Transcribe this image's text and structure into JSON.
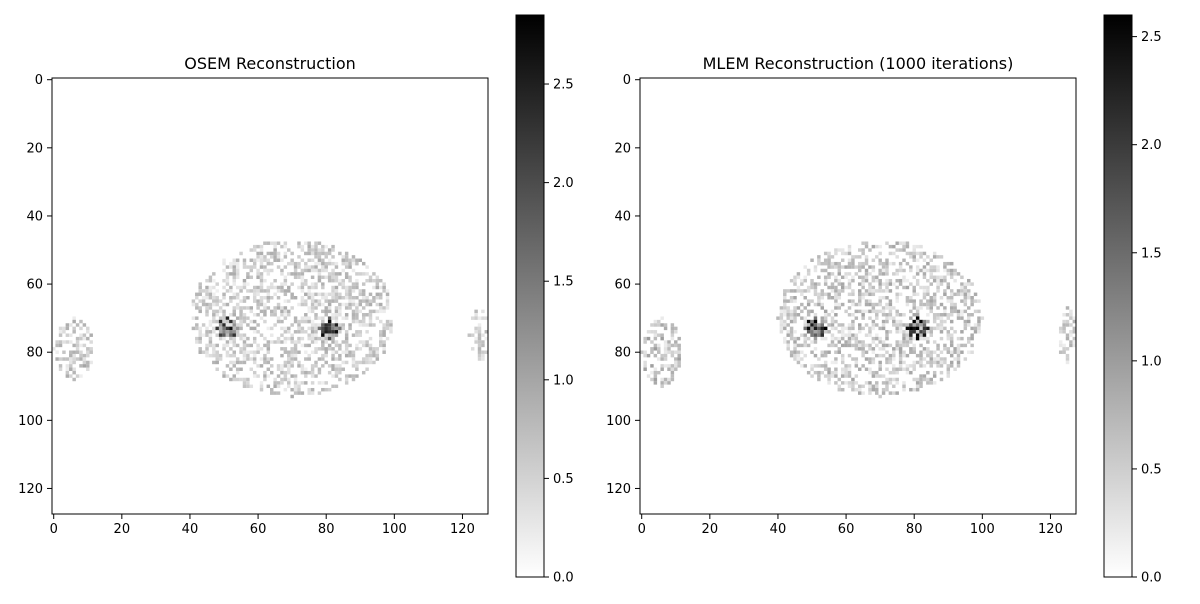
{
  "chart_data": [
    {
      "type": "heatmap",
      "title": "OSEM Reconstruction",
      "colormap": "gray_r",
      "image_shape": [
        128,
        128
      ],
      "xlim": [
        0,
        128
      ],
      "ylim": [
        128,
        0
      ],
      "x_ticks": [
        0,
        20,
        40,
        60,
        80,
        100,
        120
      ],
      "y_ticks": [
        0,
        20,
        40,
        60,
        80,
        100,
        120
      ],
      "colorbar": {
        "min": 0.0,
        "max": 2.85,
        "ticks": [
          0.0,
          0.5,
          1.0,
          1.5,
          2.0,
          2.5
        ]
      },
      "regions": [
        {
          "shape": "ellipse",
          "cx": 70,
          "cy": 70,
          "rx": 30,
          "ry": 23,
          "density": 0.5,
          "mean": 0.55
        },
        {
          "shape": "ellipse",
          "cx": 6,
          "cy": 79,
          "rx": 6,
          "ry": 9,
          "density": 0.55,
          "mean": 0.6
        },
        {
          "shape": "ellipse",
          "cx": 125,
          "cy": 75,
          "rx": 3,
          "ry": 8,
          "density": 0.5,
          "mean": 0.5
        },
        {
          "shape": "ellipse",
          "cx": 51,
          "cy": 73,
          "rx": 3,
          "ry": 3,
          "density": 0.9,
          "mean": 1.7
        },
        {
          "shape": "ellipse",
          "cx": 81,
          "cy": 73,
          "rx": 3,
          "ry": 3,
          "density": 0.9,
          "mean": 1.7
        }
      ]
    },
    {
      "type": "heatmap",
      "title": "MLEM Reconstruction (1000 iterations)",
      "colormap": "gray_r",
      "image_shape": [
        128,
        128
      ],
      "xlim": [
        0,
        128
      ],
      "ylim": [
        128,
        0
      ],
      "x_ticks": [
        0,
        20,
        40,
        60,
        80,
        100,
        120
      ],
      "y_ticks": [
        0,
        20,
        40,
        60,
        80,
        100,
        120
      ],
      "colorbar": {
        "min": 0.0,
        "max": 2.6,
        "ticks": [
          0.0,
          0.5,
          1.0,
          1.5,
          2.0,
          2.5
        ]
      },
      "regions": [
        {
          "shape": "ellipse",
          "cx": 70,
          "cy": 70,
          "rx": 30,
          "ry": 23,
          "density": 0.5,
          "mean": 0.55
        },
        {
          "shape": "ellipse",
          "cx": 6,
          "cy": 80,
          "rx": 6,
          "ry": 10,
          "density": 0.55,
          "mean": 0.6
        },
        {
          "shape": "ellipse",
          "cx": 125,
          "cy": 75,
          "rx": 3,
          "ry": 8,
          "density": 0.5,
          "mean": 0.5
        },
        {
          "shape": "ellipse",
          "cx": 51,
          "cy": 73,
          "rx": 3,
          "ry": 3,
          "density": 0.9,
          "mean": 1.6
        },
        {
          "shape": "ellipse",
          "cx": 81,
          "cy": 73,
          "rx": 3,
          "ry": 3,
          "density": 0.9,
          "mean": 1.6
        }
      ]
    }
  ]
}
